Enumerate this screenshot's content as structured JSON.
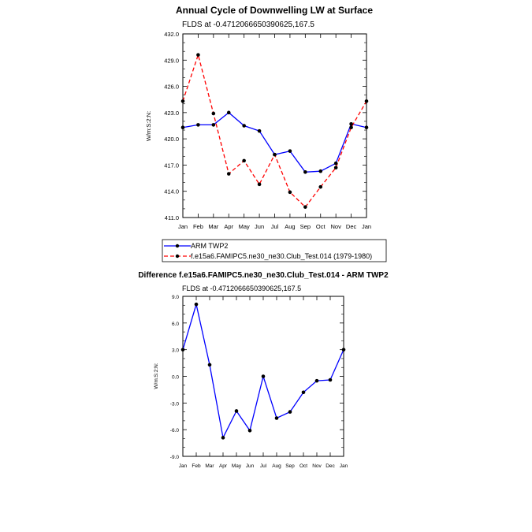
{
  "chart_data": [
    {
      "type": "line",
      "title": "Annual Cycle of Downwelling LW at Surface",
      "subtitle": "FLDS at -0.4712066650390625,167.5",
      "xlabel": "",
      "ylabel": "W/m:S:2:N:",
      "categories": [
        "Jan",
        "Feb",
        "Mar",
        "Apr",
        "May",
        "Jun",
        "Jul",
        "Aug",
        "Sep",
        "Oct",
        "Nov",
        "Dec",
        "Jan"
      ],
      "yticks": [
        "411.0",
        "414.0",
        "417.0",
        "420.0",
        "423.0",
        "426.0",
        "429.0",
        "432.0"
      ],
      "ylim": [
        411,
        432
      ],
      "grid": false,
      "legend_position": "below",
      "series": [
        {
          "name": "ARM TWP2",
          "color": "#0000ff",
          "dash": "solid",
          "values": [
            421.3,
            421.6,
            421.6,
            423.0,
            421.5,
            420.9,
            418.2,
            418.6,
            416.2,
            416.3,
            417.2,
            421.7,
            421.3
          ]
        },
        {
          "name": "f.e15a6.FAMIPC5.ne30_ne30.Club_Test.014 (1979-1980)",
          "color": "#ff0000",
          "dash": "dashed",
          "values": [
            424.3,
            429.6,
            422.9,
            416.0,
            417.5,
            414.8,
            418.2,
            413.9,
            412.2,
            414.5,
            416.7,
            421.3,
            424.3
          ]
        }
      ]
    },
    {
      "type": "line",
      "title": "Difference f.e15a6.FAMIPC5.ne30_ne30.Club_Test.014 - ARM TWP2",
      "subtitle": "FLDS at -0.4712066650390625,167.5",
      "xlabel": "",
      "ylabel": "W/m:S:2:N:",
      "categories": [
        "Jan",
        "Feb",
        "Mar",
        "Apr",
        "May",
        "Jun",
        "Jul",
        "Aug",
        "Sep",
        "Oct",
        "Nov",
        "Dec",
        "Jan"
      ],
      "yticks": [
        "-9.0",
        "-6.0",
        "-3.0",
        "0.0",
        "3.0",
        "6.0",
        "9.0"
      ],
      "ylim": [
        -9,
        9
      ],
      "grid": false,
      "series": [
        {
          "color": "#0000ff",
          "dash": "solid",
          "values": [
            3.0,
            8.1,
            1.3,
            -6.9,
            -3.9,
            -6.1,
            0.0,
            -4.7,
            -4.0,
            -1.8,
            -0.5,
            -0.4,
            3.0
          ]
        }
      ]
    }
  ]
}
